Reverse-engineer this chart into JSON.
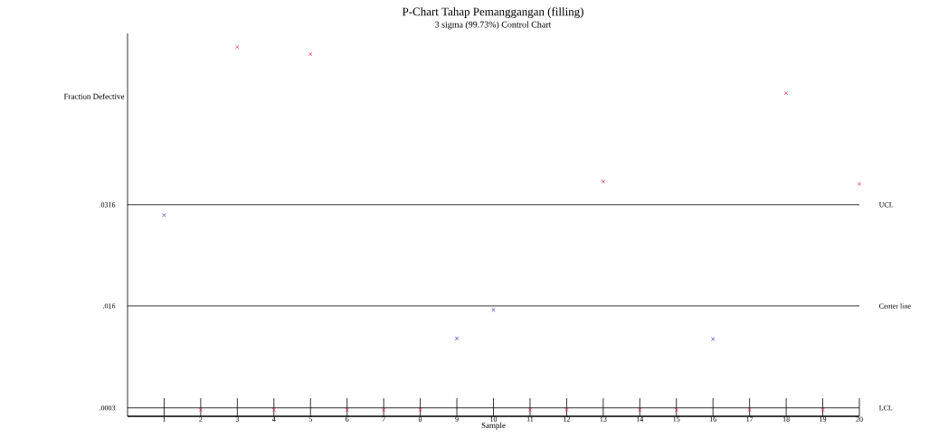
{
  "chart_data": {
    "type": "scatter",
    "title": "P-Chart Tahap Pemanggangan (filling)",
    "subtitle": "3 sigma (99.73%) Control Chart",
    "xlabel": "Sample",
    "ylabel": "Fraction Defective",
    "xlim": [
      0,
      20
    ],
    "xticks": [
      1,
      2,
      3,
      4,
      5,
      6,
      7,
      8,
      9,
      10,
      11,
      12,
      13,
      14,
      15,
      16,
      17,
      18,
      19,
      20
    ],
    "ylim": [
      -0.001,
      0.058
    ],
    "yticks": [
      {
        "value": 0.0003,
        "label": ".0003"
      },
      {
        "value": 0.016,
        "label": ".016"
      },
      {
        "value": 0.0316,
        "label": ".0316"
      }
    ],
    "series": [
      {
        "color": "#3a3ad0",
        "x": [
          1,
          9,
          10,
          16
        ],
        "values": [
          0.03,
          0.011,
          0.0154,
          0.0109
        ]
      },
      {
        "color": "#e8305a",
        "x": [
          2,
          3,
          4,
          5,
          6,
          7,
          8,
          11,
          12,
          13,
          14,
          15,
          17,
          18,
          19,
          20
        ],
        "values": [
          0,
          0.0559,
          0,
          0.0548,
          0,
          0,
          0,
          0,
          0,
          0.0352,
          0,
          0,
          0,
          0.0488,
          0,
          0.0348
        ]
      }
    ],
    "ref_lines": [
      {
        "axis": "y",
        "value": 0.0316,
        "label": "UCL",
        "color": "#000000"
      },
      {
        "axis": "y",
        "value": 0.016,
        "label": "Center line",
        "color": "#000000"
      },
      {
        "axis": "y",
        "value": 0.0003,
        "label": "LCL",
        "color": "#000000"
      }
    ],
    "marker": "cross",
    "grid": false
  }
}
